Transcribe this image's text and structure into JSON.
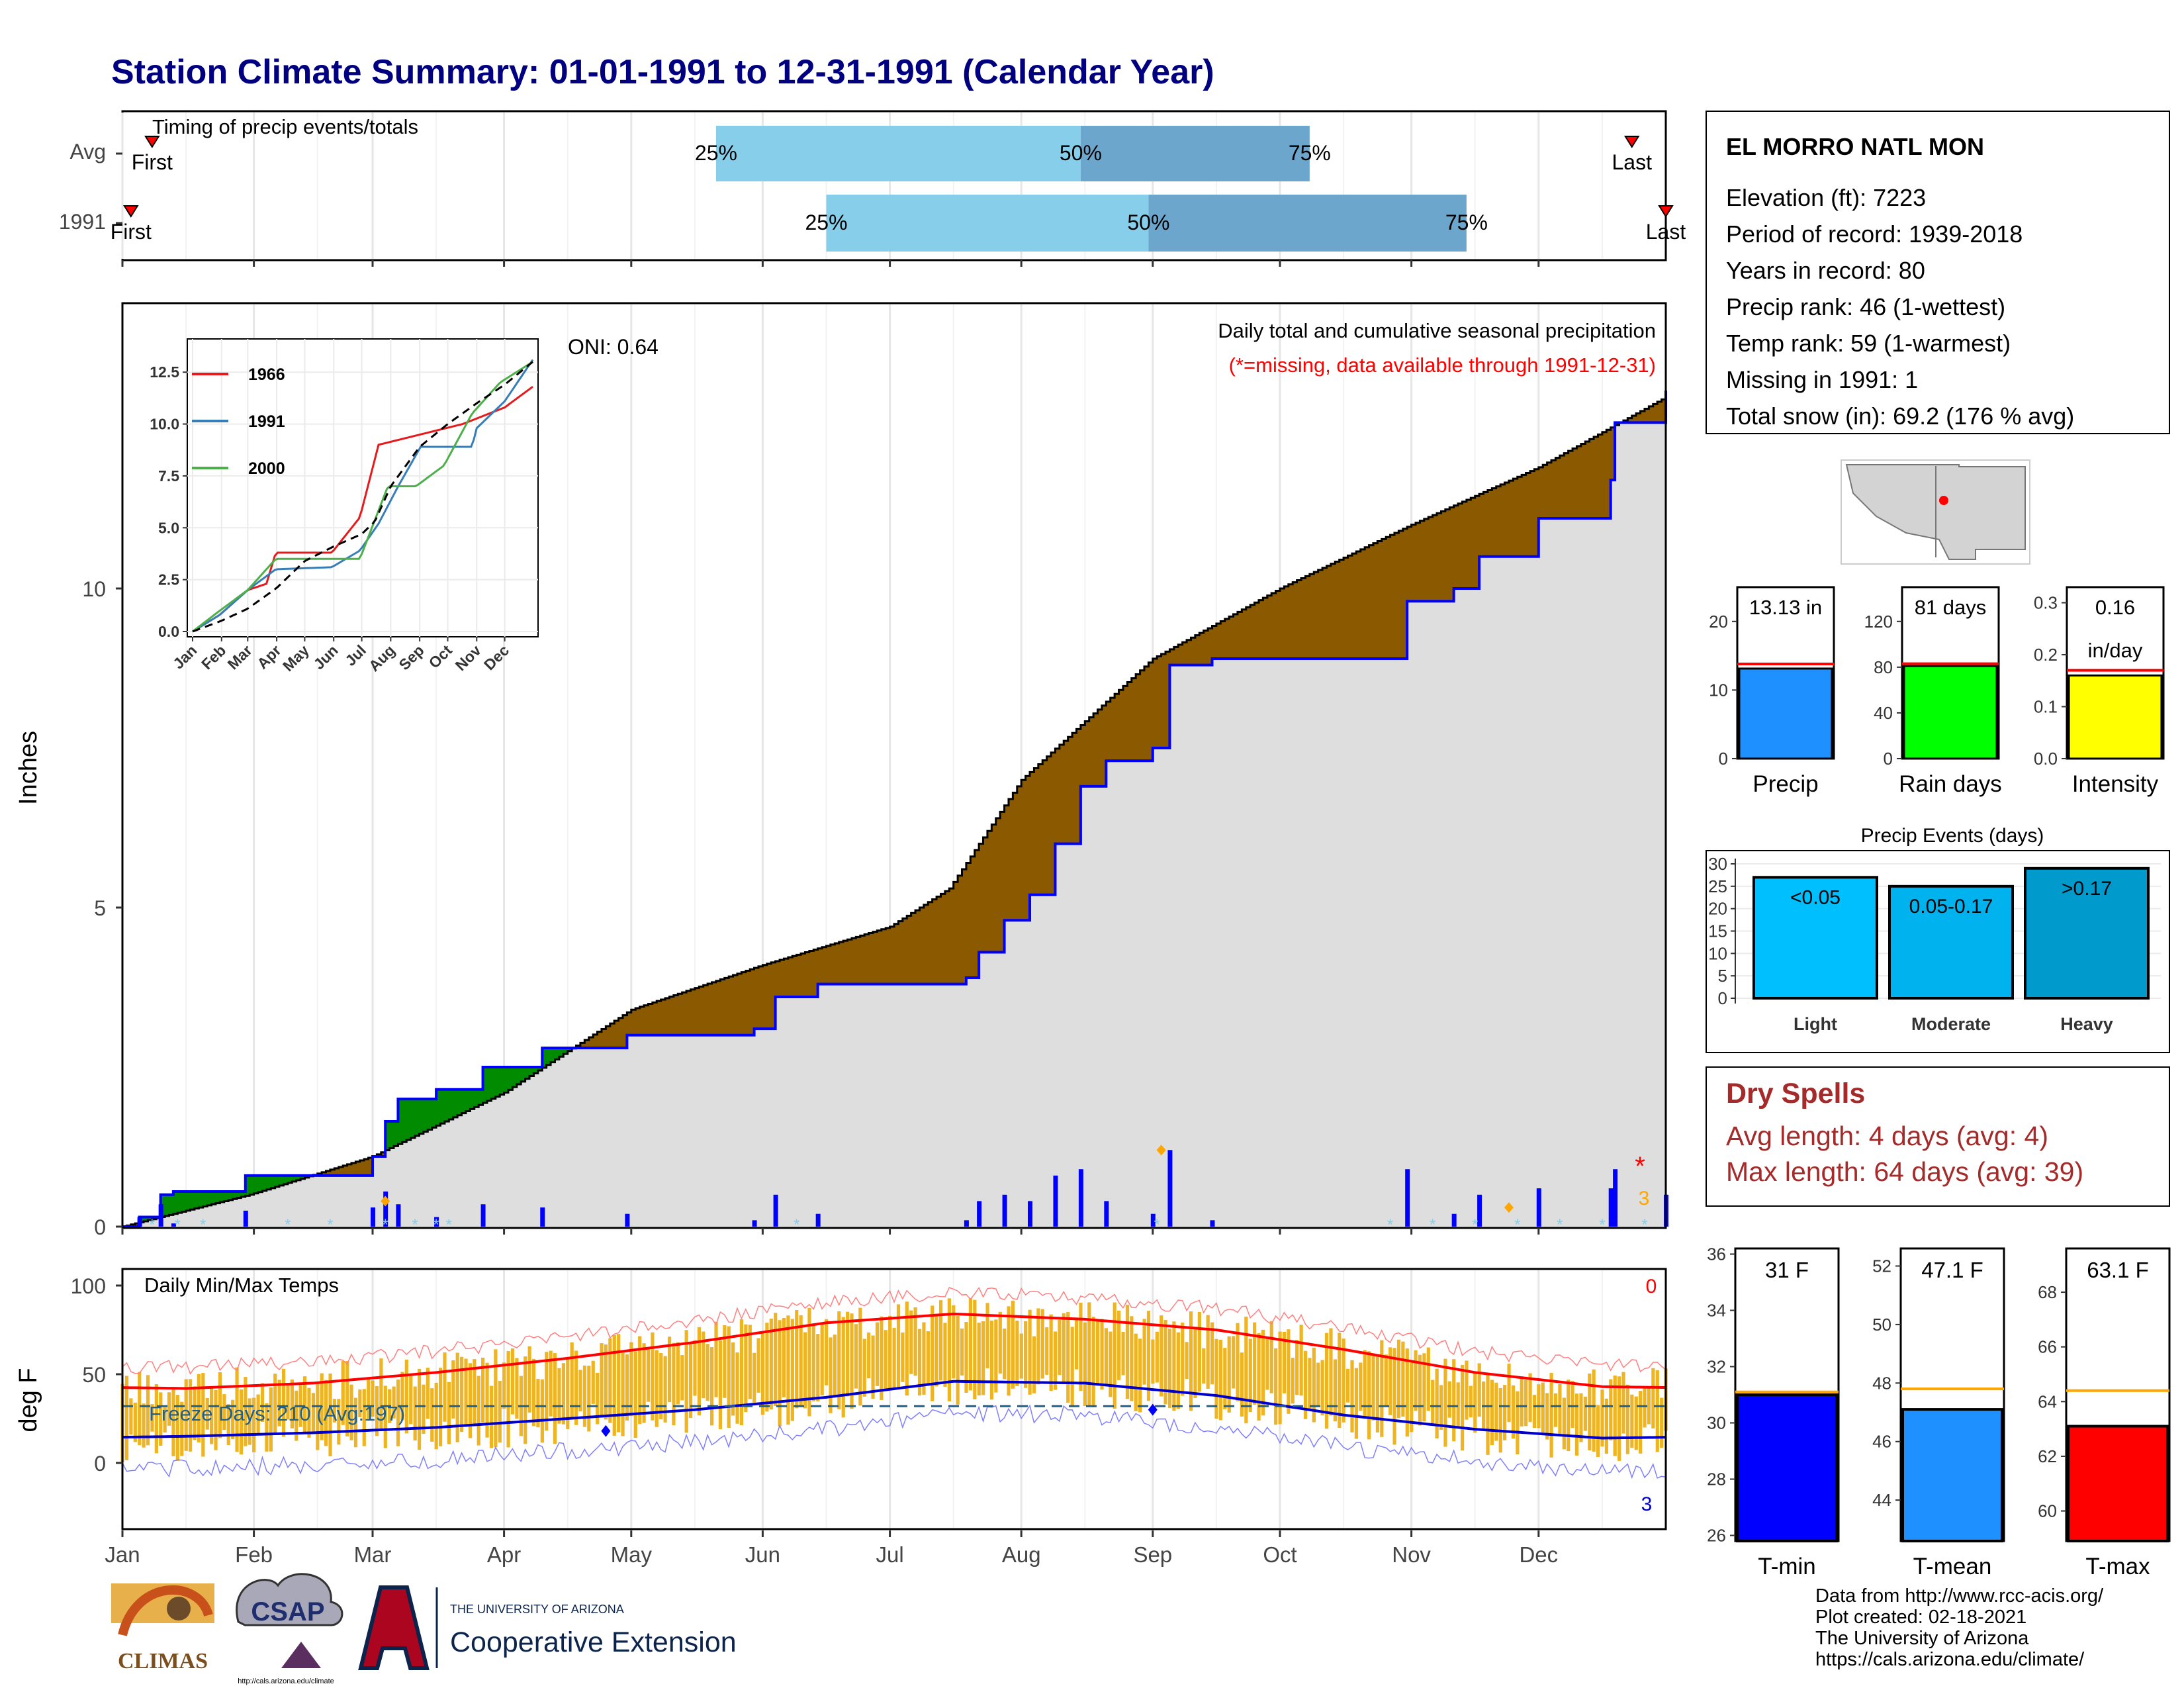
{
  "title": "Station Climate Summary: 01-01-1991 to 12-31-1991 (Calendar Year)",
  "colors": {
    "title": "#000080",
    "light_blue": "#87CEEB",
    "mid_blue": "#6CA6CD",
    "green": "#008B00",
    "brown": "#8B5A00",
    "cumulative_fill": "#DEDEDE",
    "precip_bar": "#0000FF",
    "temp_bar": "#EEB422",
    "tmax_line": "#FF0000",
    "tmin_line": "#0000CD",
    "dry_spell_text": "#A52A2A"
  },
  "months": [
    "Jan",
    "Feb",
    "Mar",
    "Apr",
    "May",
    "Jun",
    "Jul",
    "Aug",
    "Sep",
    "Oct",
    "Nov",
    "Dec"
  ],
  "timing": {
    "label": "Timing of precip events/totals",
    "rows": [
      {
        "name": "Avg",
        "first_label": "First",
        "last_label": "Last",
        "first_day": 8,
        "last_day": 357,
        "p25_day": 141,
        "p50_day": 227,
        "p75_day": 281,
        "p25": "25%",
        "p50": "50%",
        "p75": "75%"
      },
      {
        "name": "1991",
        "first_label": "First",
        "last_label": "Last",
        "first_day": 3,
        "last_day": 365,
        "p25_day": 167,
        "p50_day": 243,
        "p75_day": 318,
        "p25": "25%",
        "p50": "50%",
        "p75": "75%"
      }
    ]
  },
  "main_panel": {
    "ylabel": "Inches",
    "yticks": [
      "0",
      "5",
      "10"
    ],
    "oni": "ONI: 0.64",
    "caption": "Daily total and cumulative seasonal precipitation",
    "missing_note": "(*=missing, data available through 1991-12-31)",
    "missing_count": "3"
  },
  "inset": {
    "yticks": [
      "0.0",
      "2.5",
      "5.0",
      "7.5",
      "10.0",
      "12.5"
    ],
    "xticks": [
      "Jan",
      "Feb",
      "Mar",
      "Apr",
      "May",
      "Jun",
      "Jul",
      "Aug",
      "Sep",
      "Oct",
      "Nov",
      "Dec"
    ],
    "legend": [
      {
        "name": "1966",
        "color": "#E41A1C"
      },
      {
        "name": "1991",
        "color": "#377EB8"
      },
      {
        "name": "2000",
        "color": "#4DAF4A"
      }
    ]
  },
  "temps_panel": {
    "label": "Daily Min/Max Temps",
    "ylabel": "deg F",
    "yticks": [
      "0",
      "50",
      "100"
    ],
    "freeze": "Freeze Days: 210 (Avg:197)",
    "missing_top": "0",
    "missing_bottom": "3"
  },
  "station": {
    "name": "EL MORRO NATL MON",
    "lines": [
      "Elevation (ft): 7223",
      "Period of record: 1939-2018",
      "Years in record: 80",
      "Precip rank: 46 (1-wettest)",
      "Temp rank: 59 (1-warmest)",
      "Missing in 1991: 1",
      "Total snow (in): 69.2 (176 % avg)"
    ]
  },
  "mini_bars": [
    {
      "label": "Precip",
      "value_text": "13.13 in",
      "value": 13.13,
      "avg": 13.8,
      "ymax": 25,
      "ticks": [
        "0",
        "10",
        "20"
      ],
      "color": "#1E90FF"
    },
    {
      "label": "Rain days",
      "value_text": "81 days",
      "value": 81,
      "avg": 83,
      "ymax": 150,
      "ticks": [
        "0",
        "40",
        "80",
        "120"
      ],
      "color": "#00FF00"
    },
    {
      "label": "Intensity",
      "value_text": "0.16",
      "value_text2": "in/day",
      "value": 0.16,
      "avg": 0.17,
      "ymax": 0.33,
      "ticks": [
        "0.0",
        "0.1",
        "0.2",
        "0.3"
      ],
      "color": "#FFFF00"
    }
  ],
  "precip_events": {
    "title": "Precip Events (days)",
    "yticks": [
      "0",
      "5",
      "10",
      "15",
      "20",
      "25",
      "30"
    ],
    "bars": [
      {
        "category": "Light",
        "label": "<0.05",
        "value": 27,
        "color": "#00BFFF"
      },
      {
        "category": "Moderate",
        "label": "0.05-0.17",
        "value": 25,
        "color": "#00B2EE"
      },
      {
        "category": "Heavy",
        "label": ">0.17",
        "value": 29,
        "color": "#009ACD"
      }
    ]
  },
  "dry_spells": {
    "title": "Dry Spells",
    "avg": "Avg length: 4 days (avg: 4)",
    "max": "Max length: 64 days (avg: 39)"
  },
  "temp_bars": [
    {
      "label": "T-min",
      "value_text": "31 F",
      "value": 31,
      "avg": 31.1,
      "ymin": 25.8,
      "ymax": 36.2,
      "ticks": [
        26,
        28,
        30,
        32,
        34,
        36
      ],
      "color": "#0000FF"
    },
    {
      "label": "T-mean",
      "value_text": "47.1 F",
      "value": 47.1,
      "avg": 47.8,
      "ymin": 42.6,
      "ymax": 52.6,
      "ticks": [
        44,
        46,
        48,
        50,
        52
      ],
      "color": "#1E90FF"
    },
    {
      "label": "T-max",
      "value_text": "63.1 F",
      "value": 63.1,
      "avg": 64.4,
      "ymin": 58.9,
      "ymax": 69.6,
      "ticks": [
        60,
        62,
        64,
        66,
        68
      ],
      "color": "#FF0000"
    }
  ],
  "footer": {
    "lines": [
      "Data from http://www.rcc-acis.org/",
      "Plot created: 02-18-2021",
      "The University of Arizona",
      "https://cals.arizona.edu/climate/"
    ],
    "logo_climas": "CLIMAS",
    "logo_csap": "CSAP",
    "csap_url": "http://cals.arizona.edu/climate",
    "ua_small": "THE UNIVERSITY OF ARIZONA",
    "ua_big": "Cooperative Extension"
  },
  "chart_data": {
    "type": "area",
    "title": "Daily total and cumulative seasonal precipitation",
    "ylabel": "Inches",
    "ylim": [
      0,
      13.1
    ],
    "x_unit": "day of year",
    "series": [
      {
        "name": "Cumulative precip 1991",
        "points": [
          [
            1,
            0
          ],
          [
            5,
            0.15
          ],
          [
            10,
            0.5
          ],
          [
            13,
            0.55
          ],
          [
            30,
            0.8
          ],
          [
            60,
            1.1
          ],
          [
            63,
            1.65
          ],
          [
            66,
            2.0
          ],
          [
            75,
            2.15
          ],
          [
            86,
            2.5
          ],
          [
            100,
            2.8
          ],
          [
            120,
            3.0
          ],
          [
            150,
            3.1
          ],
          [
            155,
            3.6
          ],
          [
            165,
            3.8
          ],
          [
            200,
            3.9
          ],
          [
            203,
            4.3
          ],
          [
            209,
            4.8
          ],
          [
            215,
            5.2
          ],
          [
            221,
            6.0
          ],
          [
            227,
            6.9
          ],
          [
            233,
            7.3
          ],
          [
            244,
            7.5
          ],
          [
            248,
            8.8
          ],
          [
            258,
            8.9
          ],
          [
            300,
            8.9
          ],
          [
            304,
            9.8
          ],
          [
            315,
            10.0
          ],
          [
            321,
            10.5
          ],
          [
            335,
            11.1
          ],
          [
            352,
            11.7
          ],
          [
            353,
            12.6
          ],
          [
            365,
            13.1
          ]
        ]
      },
      {
        "name": "Average cumulative",
        "points": [
          [
            1,
            0
          ],
          [
            31,
            0.5
          ],
          [
            60,
            1.1
          ],
          [
            91,
            2.1
          ],
          [
            121,
            3.4
          ],
          [
            152,
            4.1
          ],
          [
            182,
            4.7
          ],
          [
            196,
            5.3
          ],
          [
            213,
            7.0
          ],
          [
            244,
            8.9
          ],
          [
            274,
            10.0
          ],
          [
            305,
            11.0
          ],
          [
            335,
            11.9
          ],
          [
            365,
            13.0
          ]
        ]
      }
    ],
    "inset_series": [
      {
        "name": "1966",
        "points": [
          [
            1,
            0
          ],
          [
            30,
            0.8
          ],
          [
            60,
            2.0
          ],
          [
            80,
            2.3
          ],
          [
            90,
            3.8
          ],
          [
            150,
            3.8
          ],
          [
            180,
            5.5
          ],
          [
            200,
            9.0
          ],
          [
            245,
            9.5
          ],
          [
            290,
            10.0
          ],
          [
            335,
            10.8
          ],
          [
            365,
            11.8
          ]
        ]
      },
      {
        "name": "1991",
        "points": [
          [
            1,
            0
          ],
          [
            30,
            0.8
          ],
          [
            60,
            2.0
          ],
          [
            90,
            3.0
          ],
          [
            150,
            3.1
          ],
          [
            180,
            3.9
          ],
          [
            200,
            5.2
          ],
          [
            221,
            7.0
          ],
          [
            245,
            8.9
          ],
          [
            300,
            8.9
          ],
          [
            305,
            9.8
          ],
          [
            335,
            11.1
          ],
          [
            365,
            13.1
          ]
        ]
      },
      {
        "name": "2000",
        "points": [
          [
            1,
            0
          ],
          [
            30,
            1.0
          ],
          [
            60,
            2.0
          ],
          [
            90,
            3.5
          ],
          [
            150,
            3.5
          ],
          [
            180,
            3.5
          ],
          [
            210,
            7.0
          ],
          [
            240,
            7.0
          ],
          [
            270,
            8.0
          ],
          [
            300,
            10.5
          ],
          [
            330,
            12.0
          ],
          [
            365,
            13.0
          ]
        ]
      }
    ],
    "temps": {
      "tmax_avg_by_month": [
        42,
        45,
        51,
        59,
        68,
        79,
        84,
        81,
        75,
        64,
        51,
        43
      ],
      "tmin_avg_by_month": [
        15,
        17,
        20,
        25,
        30,
        37,
        46,
        45,
        38,
        27,
        19,
        14
      ],
      "freeze_line": 32
    }
  }
}
